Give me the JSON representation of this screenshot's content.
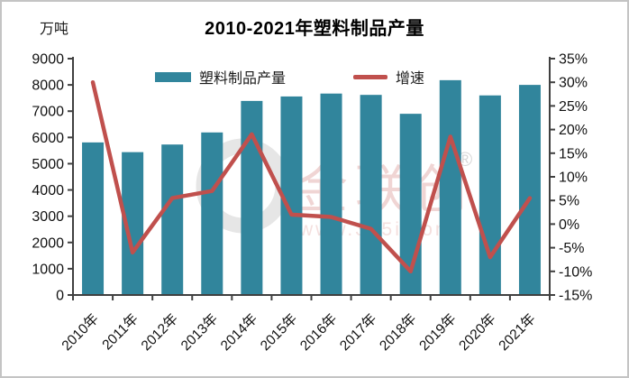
{
  "chart": {
    "title": "2010-2021年塑料制品产量",
    "unit_label": "万吨",
    "watermark": {
      "brand": "金联创",
      "reg_mark": "®",
      "url": "www.315i.com"
    }
  },
  "chart_data": {
    "type": "bar+line combo",
    "title": "2010-2021年塑料制品产量",
    "categories": [
      "2010年",
      "2011年",
      "2012年",
      "2013年",
      "2014年",
      "2015年",
      "2016年",
      "2017年",
      "2018年",
      "2019年",
      "2020年",
      "2021年"
    ],
    "series": [
      {
        "name": "塑料制品产量",
        "type": "bar",
        "axis": "left",
        "unit": "万吨",
        "color": "#31859C",
        "values": [
          5810,
          5440,
          5730,
          6190,
          7390,
          7560,
          7670,
          7620,
          6900,
          8180,
          7600,
          8000
        ]
      },
      {
        "name": "增速",
        "type": "line",
        "axis": "right",
        "unit": "%",
        "color": "#C0504D",
        "values": [
          30,
          -6,
          5.5,
          7,
          19,
          2,
          1.5,
          -1,
          -10,
          18.5,
          -7,
          5.5
        ]
      }
    ],
    "left_axis": {
      "min": 0,
      "max": 9000,
      "step": 1000,
      "tick_labels": [
        "0",
        "1000",
        "2000",
        "3000",
        "4000",
        "5000",
        "6000",
        "7000",
        "8000",
        "9000"
      ]
    },
    "right_axis": {
      "min": -15,
      "max": 35,
      "step": 5,
      "tick_labels": [
        "-15%",
        "-10%",
        "-5%",
        "0%",
        "5%",
        "10%",
        "15%",
        "20%",
        "25%",
        "30%",
        "35%"
      ]
    },
    "grid": "off",
    "legend_position": "top-inside",
    "colors": {
      "axis": "#404040",
      "tick_text": "#111111",
      "watermark_pink": "#DB9895",
      "watermark_gray": "#DCDCDC"
    }
  }
}
